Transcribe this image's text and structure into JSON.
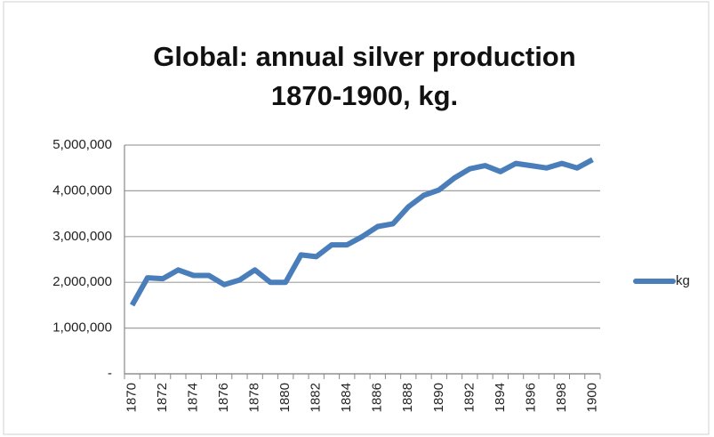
{
  "chart_data": {
    "type": "line",
    "title": [
      "Global: annual silver production",
      "1870-1900, kg."
    ],
    "categories": [
      "1870",
      null,
      "1872",
      null,
      "1874",
      null,
      "1876",
      null,
      "1878",
      null,
      "1880",
      null,
      "1882",
      null,
      "1884",
      null,
      "1886",
      null,
      "1888",
      null,
      "1890",
      null,
      "1892",
      null,
      "1894",
      null,
      "1896",
      null,
      "1898",
      null,
      "1900"
    ],
    "series": [
      {
        "name": "kg",
        "color": "#4a7ebb",
        "values": [
          1500000,
          2100000,
          2080000,
          2270000,
          2150000,
          2150000,
          1950000,
          2050000,
          2270000,
          2000000,
          2000000,
          2600000,
          2560000,
          2820000,
          2820000,
          3000000,
          3220000,
          3280000,
          3650000,
          3900000,
          4020000,
          4280000,
          4480000,
          4550000,
          4420000,
          4600000,
          4550000,
          4500000,
          4600000,
          4500000,
          4680000
        ]
      }
    ],
    "ylim": [
      0,
      5000000
    ],
    "yticks": [
      {
        "value": 0,
        "label": "-"
      },
      {
        "value": 1000000,
        "label": "1,000,000"
      },
      {
        "value": 2000000,
        "label": "2,000,000"
      },
      {
        "value": 3000000,
        "label": "3,000,000"
      },
      {
        "value": 4000000,
        "label": "4,000,000"
      },
      {
        "value": 5000000,
        "label": "5,000,000"
      }
    ],
    "grid": true,
    "legend": "right"
  }
}
